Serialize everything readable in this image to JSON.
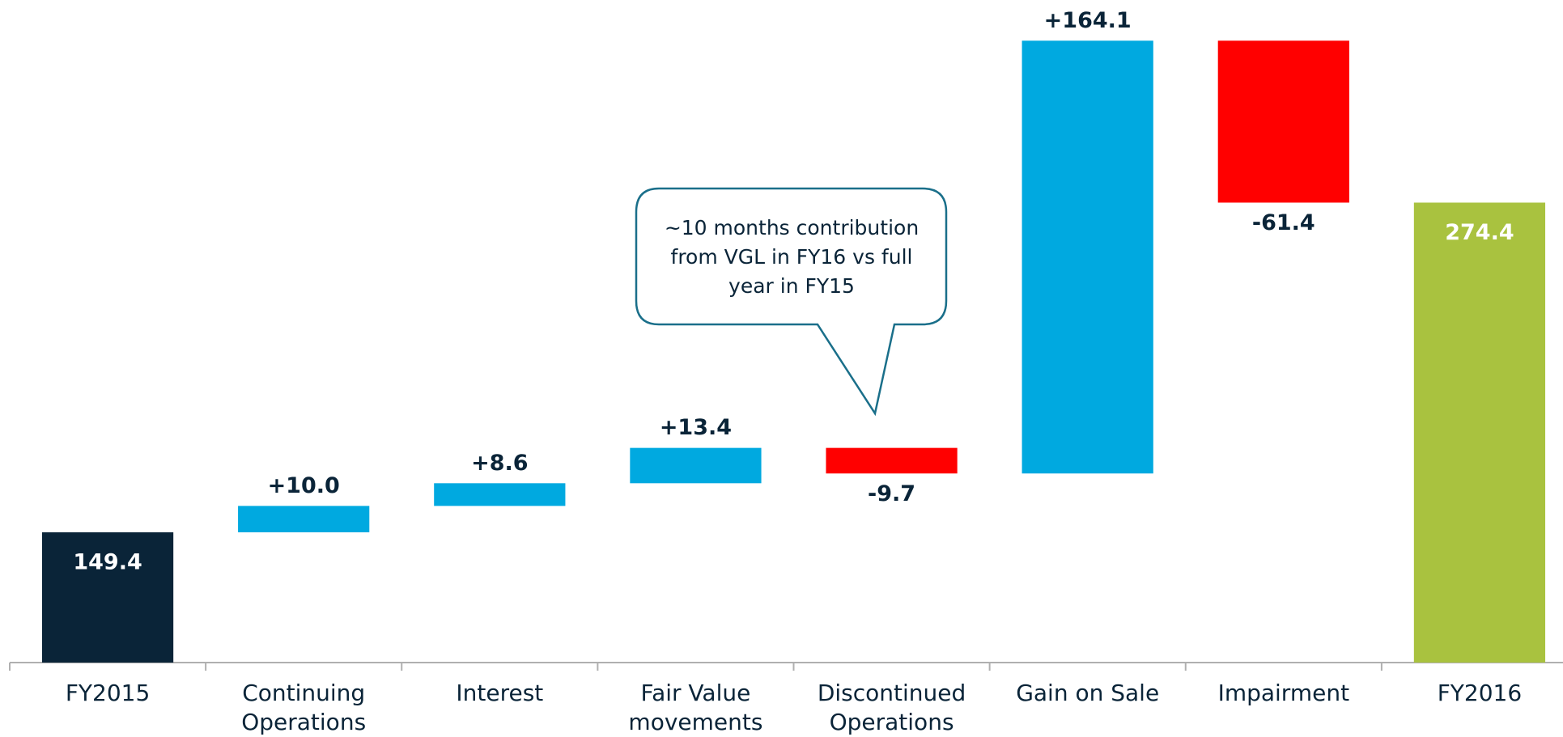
{
  "chart_data": {
    "type": "waterfall",
    "categories": [
      "FY2015",
      "Continuing Operations",
      "Interest",
      "Fair Value movements",
      "Discontinued Operations",
      "Gain on Sale",
      "Impairment",
      "FY2016"
    ],
    "values": [
      149.4,
      10.0,
      8.6,
      13.4,
      -9.7,
      164.1,
      -61.4,
      274.4
    ],
    "value_labels": [
      "149.4",
      "+10.0",
      "+8.6",
      "+13.4",
      "-9.7",
      "+164.1",
      "-61.4",
      "274.4"
    ],
    "measure": [
      "absolute",
      "relative",
      "relative",
      "relative",
      "relative",
      "relative",
      "relative",
      "total"
    ],
    "colors": [
      "#0a2438",
      "#00a9e0",
      "#00a9e0",
      "#00a9e0",
      "#ff0000",
      "#00a9e0",
      "#ff0000",
      "#a9c23f"
    ],
    "ylim": [
      100,
      350
    ],
    "annotation": [
      "~10 months contribution",
      "from VGL in FY16 vs full",
      "year in FY15"
    ]
  }
}
